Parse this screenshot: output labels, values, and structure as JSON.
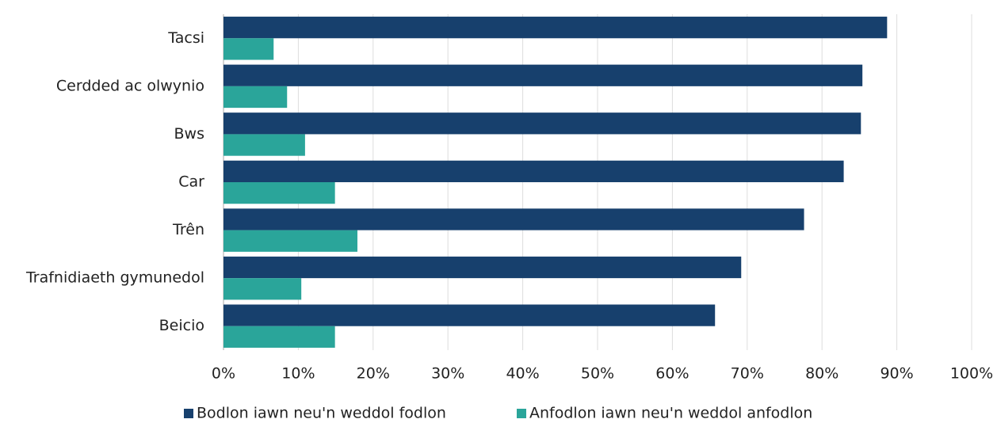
{
  "chart_data": {
    "type": "barh",
    "categories": [
      "Tacsi",
      "Cerdded ac olwynio",
      "Bws",
      "Car",
      "Trên",
      "Trafnidiaeth gymunedol",
      "Beicio"
    ],
    "series": [
      {
        "name": "Bodlon iawn neu'n weddol fodlon",
        "color": "#17406d",
        "values": [
          88.7,
          85.4,
          85.2,
          82.9,
          77.6,
          69.2,
          65.7
        ]
      },
      {
        "name": "Anfodlon iawn neu'n weddol anfodlon",
        "color": "#2aa59a",
        "values": [
          6.7,
          8.5,
          10.9,
          14.9,
          17.9,
          10.4,
          14.9
        ]
      }
    ],
    "xlim": [
      0,
      100
    ],
    "xticks": [
      {
        "value": 0,
        "label": "0%"
      },
      {
        "value": 10,
        "label": "10%"
      },
      {
        "value": 20,
        "label": "20%"
      },
      {
        "value": 30,
        "label": "30%"
      },
      {
        "value": 40,
        "label": "40%"
      },
      {
        "value": 50,
        "label": "50%"
      },
      {
        "value": 60,
        "label": "60%"
      },
      {
        "value": 70,
        "label": "70%"
      },
      {
        "value": 80,
        "label": "80%"
      },
      {
        "value": 90,
        "label": "90%"
      },
      {
        "value": 100,
        "label": "100%"
      }
    ],
    "grid": true,
    "legend": "bottom"
  }
}
